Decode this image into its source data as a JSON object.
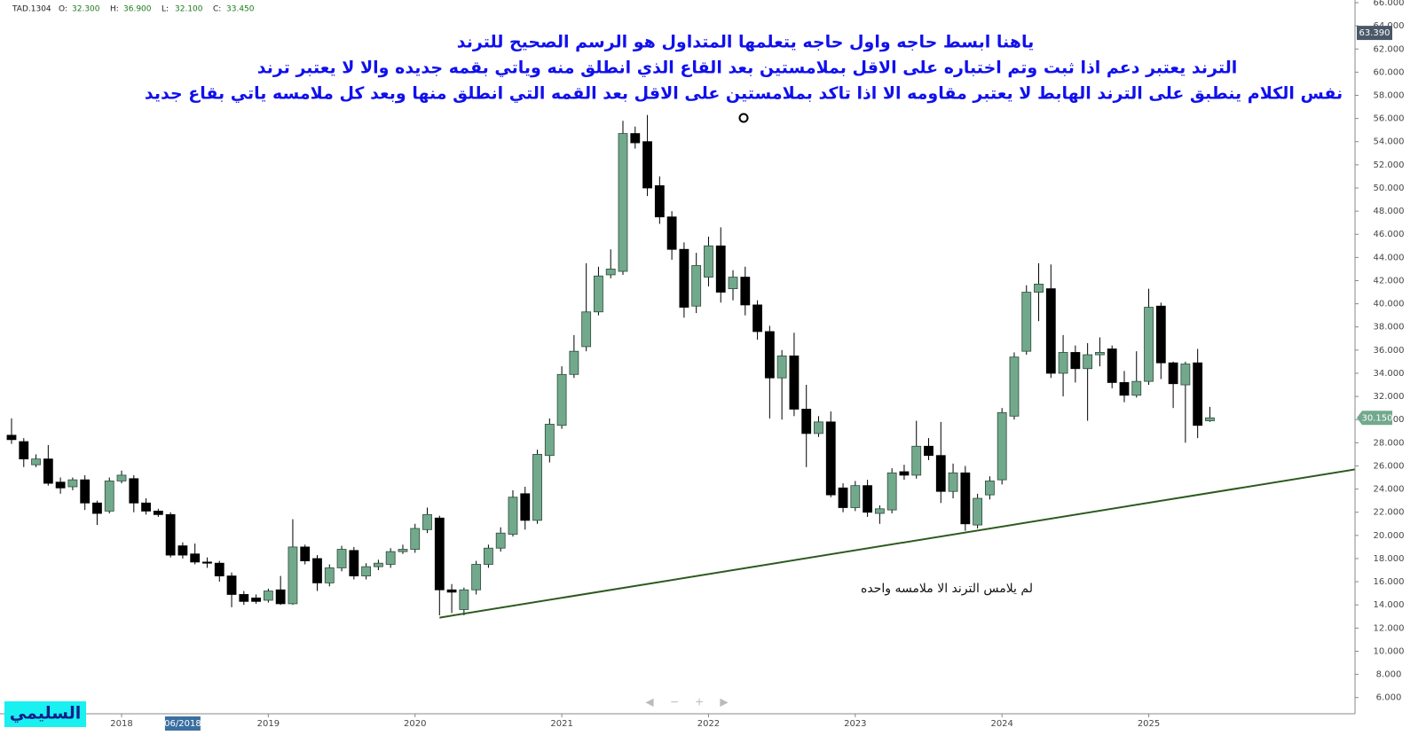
{
  "chart_data": {
    "type": "candlestick",
    "symbol": "TAD.1304",
    "ohlc_header": [
      {
        "label": "O:",
        "value": "32.300"
      },
      {
        "label": "H:",
        "value": "36.900"
      },
      {
        "label": "L:",
        "value": "32.100"
      },
      {
        "label": "C:",
        "value": "33.450"
      }
    ],
    "annotations": [
      "ياهنا ابسط حاجه واول حاجه يتعلمها المتداول هو الرسم الصحيح للترند",
      "الترند يعتبر دعم اذا ثبت وتم اختباره على الاقل بملامستين بعد القاع الذي انطلق منه وياتي بقمه جديده والا لا يعتبر ترند",
      "نفس الكلام ينطبق على الترند الهابط لا يعتبر مقاومه الا اذا تاكد بملامستين على الاقل بعد القمه التي انطلق منها وبعد كل ملامسه ياتي بقاع جديد"
    ],
    "trend_note": "لم يلامس الترند الا ملامسه واحده",
    "signature": "السليمي",
    "up_color": "#72a98c",
    "down_color": "#000000",
    "trendline": {
      "start": "03/2020",
      "values": [
        12.9,
        25.7
      ],
      "color": "#2d5a1e"
    },
    "x": [
      "04/2017",
      "05/2017",
      "06/2017",
      "07/2017",
      "08/2017",
      "09/2017",
      "10/2017",
      "11/2017",
      "12/2017",
      "01/2018",
      "02/2018",
      "03/2018",
      "04/2018",
      "05/2018",
      "06/2018",
      "07/2018",
      "08/2018",
      "09/2018",
      "10/2018",
      "11/2018",
      "12/2018",
      "01/2019",
      "02/2019",
      "03/2019",
      "04/2019",
      "05/2019",
      "06/2019",
      "07/2019",
      "08/2019",
      "09/2019",
      "10/2019",
      "11/2019",
      "12/2019",
      "01/2020",
      "02/2020",
      "03/2020",
      "04/2020",
      "05/2020",
      "06/2020",
      "07/2020",
      "08/2020",
      "09/2020",
      "10/2020",
      "11/2020",
      "12/2020",
      "01/2021",
      "02/2021",
      "03/2021",
      "04/2021",
      "05/2021",
      "06/2021",
      "07/2021",
      "08/2021",
      "09/2021",
      "10/2021",
      "11/2021",
      "12/2021",
      "01/2022",
      "02/2022",
      "03/2022",
      "04/2022",
      "05/2022",
      "06/2022",
      "07/2022",
      "08/2022",
      "09/2022",
      "10/2022",
      "11/2022",
      "12/2022",
      "01/2023",
      "02/2023",
      "03/2023",
      "04/2023",
      "05/2023",
      "06/2023",
      "07/2023",
      "08/2023",
      "09/2023",
      "10/2023",
      "11/2023",
      "12/2023",
      "01/2024",
      "02/2024",
      "03/2024",
      "04/2024",
      "05/2024",
      "06/2024",
      "07/2024",
      "08/2024",
      "09/2024",
      "10/2024",
      "11/2024",
      "12/2024",
      "01/2025",
      "02/2025",
      "03/2025",
      "04/2025",
      "05/2025",
      "06/2025"
    ],
    "open": [
      28.65,
      28.1,
      26.1,
      26.6,
      24.6,
      24.2,
      24.8,
      22.8,
      22.1,
      24.7,
      24.9,
      22.8,
      22.1,
      21.8,
      19.1,
      18.4,
      17.7,
      17.6,
      16.5,
      14.9,
      14.6,
      14.4,
      15.3,
      14.1,
      19.0,
      18.0,
      15.9,
      17.2,
      18.7,
      16.5,
      17.3,
      17.5,
      18.6,
      18.8,
      20.5,
      21.5,
      15.3,
      13.6,
      15.3,
      17.5,
      18.9,
      20.1,
      23.6,
      21.3,
      26.9,
      29.5,
      33.9,
      36.3,
      39.3,
      42.5,
      42.8,
      54.7,
      54.0,
      50.2,
      47.5,
      44.7,
      39.8,
      42.3,
      45.0,
      41.3,
      42.3,
      39.9,
      37.6,
      33.6,
      35.5,
      30.9,
      28.8,
      29.8,
      24.1,
      22.4,
      24.3,
      21.9,
      22.2,
      25.5,
      25.2,
      27.7,
      26.9,
      23.8,
      25.4,
      20.9,
      23.5,
      24.8,
      30.3,
      35.9,
      41.0,
      41.3,
      34.0,
      35.8,
      34.4,
      35.6,
      36.1,
      33.2,
      32.1,
      33.3,
      39.8,
      34.9,
      33.0,
      34.9,
      29.9
    ],
    "high": [
      30.1,
      28.4,
      27.0,
      27.8,
      25.0,
      25.0,
      25.2,
      23.0,
      25.0,
      25.6,
      25.2,
      23.2,
      22.3,
      22.0,
      19.4,
      19.3,
      18.1,
      17.8,
      16.8,
      15.2,
      14.9,
      15.4,
      16.5,
      21.4,
      19.2,
      18.3,
      17.5,
      19.1,
      19.0,
      17.6,
      17.9,
      18.9,
      19.2,
      21.0,
      22.4,
      21.7,
      15.8,
      15.5,
      17.8,
      19.2,
      20.7,
      23.9,
      24.2,
      27.4,
      30.1,
      34.6,
      37.3,
      43.5,
      43.2,
      44.7,
      55.8,
      55.3,
      56.3,
      51.0,
      48.0,
      45.3,
      44.4,
      45.8,
      46.6,
      42.9,
      43.2,
      40.3,
      38.1,
      36.0,
      37.5,
      33.0,
      30.3,
      30.7,
      24.5,
      24.7,
      24.8,
      22.6,
      25.8,
      26.1,
      29.9,
      28.4,
      29.8,
      26.2,
      26.0,
      23.6,
      25.1,
      31.0,
      35.8,
      41.6,
      43.5,
      43.4,
      37.3,
      36.4,
      36.6,
      37.1,
      36.4,
      34.2,
      35.9,
      41.3,
      40.1,
      35.0,
      35.0,
      36.1,
      31.1
    ],
    "low": [
      27.9,
      25.9,
      25.9,
      24.3,
      23.6,
      23.9,
      22.2,
      20.9,
      21.9,
      24.5,
      22.0,
      21.8,
      21.6,
      18.1,
      18.0,
      17.5,
      17.2,
      16.0,
      13.8,
      14.0,
      14.1,
      14.2,
      14.0,
      14.0,
      17.5,
      15.2,
      15.6,
      16.9,
      16.2,
      16.2,
      17.0,
      17.2,
      18.4,
      18.5,
      20.2,
      13.1,
      13.3,
      13.1,
      14.9,
      17.2,
      18.6,
      19.9,
      20.5,
      21.0,
      26.3,
      29.2,
      33.6,
      35.9,
      39.0,
      42.2,
      42.5,
      53.4,
      49.3,
      46.9,
      43.8,
      38.8,
      39.2,
      41.5,
      40.1,
      40.3,
      39.0,
      36.9,
      30.1,
      30.0,
      30.3,
      25.9,
      28.5,
      23.3,
      22.0,
      22.1,
      21.6,
      21.0,
      21.9,
      24.8,
      24.9,
      26.5,
      22.8,
      23.2,
      20.4,
      20.6,
      23.1,
      24.4,
      30.0,
      35.6,
      38.5,
      33.6,
      32.0,
      33.2,
      29.9,
      34.6,
      32.7,
      31.5,
      31.9,
      33.0,
      33.5,
      31.0,
      28.0,
      28.4,
      29.8
    ],
    "close": [
      28.27,
      26.6,
      26.6,
      24.5,
      24.1,
      24.8,
      22.8,
      21.9,
      24.7,
      25.2,
      22.8,
      22.1,
      21.8,
      18.3,
      18.3,
      17.7,
      17.6,
      16.5,
      14.9,
      14.3,
      14.3,
      15.2,
      14.1,
      19.0,
      17.8,
      15.9,
      17.2,
      18.8,
      16.5,
      17.3,
      17.6,
      18.6,
      18.8,
      20.6,
      21.8,
      15.3,
      15.1,
      15.3,
      17.5,
      18.9,
      20.2,
      23.3,
      21.3,
      27.0,
      29.6,
      33.9,
      35.9,
      39.3,
      42.4,
      43.0,
      54.7,
      53.9,
      50.0,
      47.5,
      44.7,
      39.7,
      43.3,
      45.0,
      41.0,
      42.3,
      39.9,
      37.6,
      33.6,
      35.5,
      30.9,
      28.8,
      29.8,
      23.5,
      22.4,
      24.3,
      22.0,
      22.3,
      25.4,
      25.2,
      27.7,
      26.9,
      23.8,
      25.4,
      21.0,
      23.2,
      24.7,
      30.6,
      35.4,
      41.0,
      41.7,
      34.0,
      35.8,
      34.4,
      35.6,
      35.8,
      33.2,
      32.1,
      33.3,
      39.7,
      34.9,
      33.1,
      34.8,
      29.5,
      30.15
    ],
    "ylim": [
      4.6,
      66.23
    ],
    "yticks": [
      {
        "value": 6,
        "label": "6.000"
      },
      {
        "value": 8,
        "label": "8.000"
      },
      {
        "value": 10,
        "label": "10.000"
      },
      {
        "value": 12,
        "label": "12.000"
      },
      {
        "value": 14,
        "label": "14.000"
      },
      {
        "value": 16,
        "label": "16.000"
      },
      {
        "value": 18,
        "label": "18.000"
      },
      {
        "value": 20,
        "label": "20.000"
      },
      {
        "value": 22,
        "label": "22.000"
      },
      {
        "value": 24,
        "label": "24.000"
      },
      {
        "value": 26,
        "label": "26.000"
      },
      {
        "value": 28,
        "label": "28.000"
      },
      {
        "value": 30,
        "label": "30.000"
      },
      {
        "value": 32,
        "label": "32.000"
      },
      {
        "value": 34,
        "label": "34.000"
      },
      {
        "value": 36,
        "label": "36.000"
      },
      {
        "value": 38,
        "label": "38.000"
      },
      {
        "value": 40,
        "label": "40.000"
      },
      {
        "value": 42,
        "label": "42.000"
      },
      {
        "value": 44,
        "label": "44.000"
      },
      {
        "value": 46,
        "label": "46.000"
      },
      {
        "value": 48,
        "label": "48.000"
      },
      {
        "value": 50,
        "label": "50.000"
      },
      {
        "value": 52,
        "label": "52.000"
      },
      {
        "value": 54,
        "label": "54.000"
      },
      {
        "value": 56,
        "label": "56.000"
      },
      {
        "value": 58,
        "label": "58.000"
      },
      {
        "value": 60,
        "label": "60.000"
      },
      {
        "value": 62,
        "label": "62.000"
      },
      {
        "value": 64,
        "label": "64.000"
      },
      {
        "value": 66,
        "label": "66.000"
      }
    ],
    "xticks": [
      {
        "value": "01/2018",
        "label": "2018"
      },
      {
        "value": "01/2019",
        "label": "2019"
      },
      {
        "value": "01/2020",
        "label": "2020"
      },
      {
        "value": "01/2021",
        "label": "2021"
      },
      {
        "value": "01/2022",
        "label": "2022"
      },
      {
        "value": "01/2023",
        "label": "2023"
      },
      {
        "value": "01/2024",
        "label": "2024"
      },
      {
        "value": "01/2025",
        "label": "2025"
      }
    ],
    "crosshair": {
      "x": "06/2018",
      "y": {
        "value": 63.39,
        "label": "63.390"
      }
    },
    "last_price": {
      "value": 30.15,
      "label": "30.150"
    }
  }
}
